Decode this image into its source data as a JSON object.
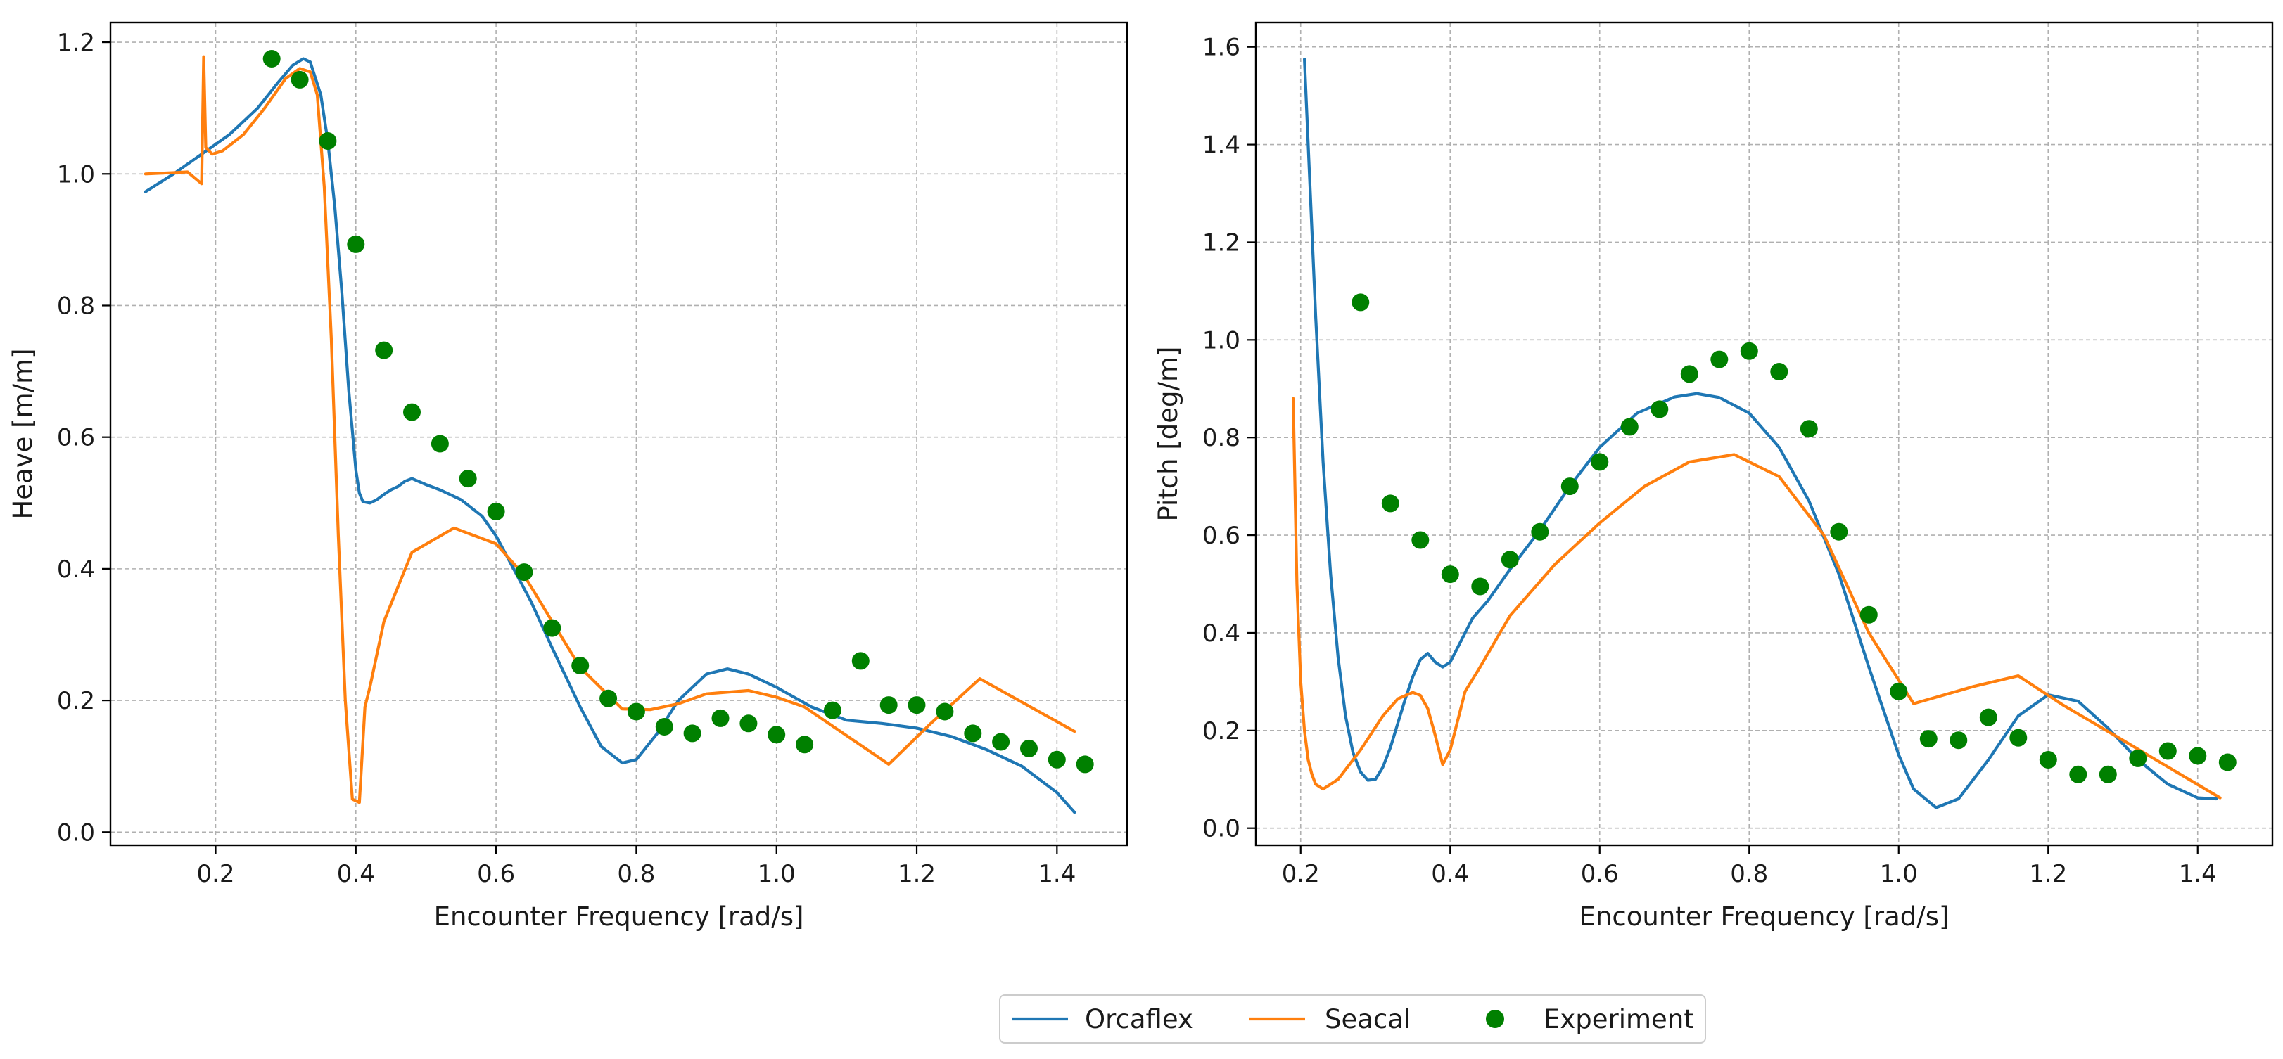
{
  "chart_data": [
    {
      "type": "line",
      "title": "",
      "xlabel": "Encounter Frequency [rad/s]",
      "ylabel": "Heave [m/m]",
      "xlim": [
        0.05,
        1.5
      ],
      "ylim": [
        -0.02,
        1.23
      ],
      "xticks": [
        0.2,
        0.4,
        0.6,
        0.8,
        1.0,
        1.2,
        1.4
      ],
      "xtick_labels": [
        "0.2",
        "0.4",
        "0.6",
        "0.8",
        "1.0",
        "1.2",
        "1.4"
      ],
      "yticks": [
        0.0,
        0.2,
        0.4,
        0.6,
        0.8,
        1.0,
        1.2
      ],
      "ytick_labels": [
        "0.0",
        "0.2",
        "0.4",
        "0.6",
        "0.8",
        "1.0",
        "1.2"
      ],
      "grid": true,
      "series": [
        {
          "name": "Orcaflex",
          "kind": "line",
          "color": "#1f77b4",
          "x": [
            0.1,
            0.14,
            0.18,
            0.22,
            0.26,
            0.29,
            0.31,
            0.325,
            0.335,
            0.35,
            0.36,
            0.37,
            0.38,
            0.39,
            0.4,
            0.405,
            0.41,
            0.42,
            0.43,
            0.44,
            0.45,
            0.46,
            0.47,
            0.48,
            0.5,
            0.52,
            0.55,
            0.58,
            0.6,
            0.62,
            0.65,
            0.68,
            0.72,
            0.75,
            0.78,
            0.8,
            0.83,
            0.86,
            0.9,
            0.93,
            0.96,
            1.0,
            1.05,
            1.1,
            1.15,
            1.2,
            1.25,
            1.3,
            1.35,
            1.4,
            1.425
          ],
          "y": [
            0.973,
            1.0,
            1.03,
            1.06,
            1.1,
            1.14,
            1.165,
            1.175,
            1.17,
            1.12,
            1.05,
            0.95,
            0.82,
            0.67,
            0.55,
            0.515,
            0.502,
            0.5,
            0.505,
            0.513,
            0.52,
            0.525,
            0.533,
            0.537,
            0.528,
            0.52,
            0.505,
            0.48,
            0.45,
            0.41,
            0.35,
            0.28,
            0.19,
            0.13,
            0.105,
            0.11,
            0.15,
            0.2,
            0.24,
            0.248,
            0.24,
            0.22,
            0.19,
            0.17,
            0.165,
            0.158,
            0.145,
            0.125,
            0.1,
            0.06,
            0.03
          ]
        },
        {
          "name": "Seacal",
          "kind": "line",
          "color": "#ff7f0e",
          "x": [
            0.1,
            0.16,
            0.18,
            0.183,
            0.186,
            0.195,
            0.21,
            0.24,
            0.27,
            0.3,
            0.32,
            0.335,
            0.345,
            0.355,
            0.365,
            0.375,
            0.385,
            0.395,
            0.405,
            0.413,
            0.42,
            0.44,
            0.48,
            0.54,
            0.6,
            0.64,
            0.68,
            0.72,
            0.78,
            0.82,
            0.86,
            0.9,
            0.96,
            1.0,
            1.04,
            1.16,
            1.22,
            1.29,
            1.425
          ],
          "y": [
            1.0,
            1.003,
            0.985,
            1.178,
            1.04,
            1.03,
            1.035,
            1.06,
            1.1,
            1.145,
            1.16,
            1.155,
            1.12,
            0.98,
            0.75,
            0.45,
            0.2,
            0.05,
            0.045,
            0.19,
            0.22,
            0.32,
            0.425,
            0.462,
            0.438,
            0.39,
            0.32,
            0.25,
            0.187,
            0.186,
            0.195,
            0.21,
            0.215,
            0.205,
            0.19,
            0.103,
            0.165,
            0.233,
            0.153
          ]
        },
        {
          "name": "Experiment",
          "kind": "scatter",
          "color": "#008000",
          "x": [
            0.28,
            0.32,
            0.36,
            0.4,
            0.44,
            0.48,
            0.52,
            0.56,
            0.6,
            0.64,
            0.68,
            0.72,
            0.76,
            0.8,
            0.84,
            0.88,
            0.92,
            0.96,
            1.0,
            1.04,
            1.08,
            1.12,
            1.16,
            1.2,
            1.24,
            1.28,
            1.32,
            1.36,
            1.4,
            1.44
          ],
          "y": [
            1.175,
            1.143,
            1.05,
            0.893,
            0.732,
            0.638,
            0.59,
            0.537,
            0.487,
            0.395,
            0.31,
            0.253,
            0.203,
            0.183,
            0.16,
            0.15,
            0.173,
            0.165,
            0.148,
            0.133,
            0.185,
            0.26,
            0.193,
            0.193,
            0.183,
            0.15,
            0.137,
            0.127,
            0.11,
            0.103
          ]
        }
      ]
    },
    {
      "type": "line",
      "title": "",
      "xlabel": "Encounter Frequency [rad/s]",
      "ylabel": "Pitch [deg/m]",
      "xlim": [
        0.14,
        1.5
      ],
      "ylim": [
        -0.035,
        1.65
      ],
      "xticks": [
        0.2,
        0.4,
        0.6,
        0.8,
        1.0,
        1.2,
        1.4
      ],
      "xtick_labels": [
        "0.2",
        "0.4",
        "0.6",
        "0.8",
        "1.0",
        "1.2",
        "1.4"
      ],
      "yticks": [
        0.0,
        0.2,
        0.4,
        0.6,
        0.8,
        1.0,
        1.2,
        1.4,
        1.6
      ],
      "ytick_labels": [
        "0.0",
        "0.2",
        "0.4",
        "0.6",
        "0.8",
        "1.0",
        "1.2",
        "1.4",
        "1.6"
      ],
      "grid": true,
      "series": [
        {
          "name": "Orcaflex",
          "kind": "line",
          "color": "#1f77b4",
          "x": [
            0.205,
            0.21,
            0.22,
            0.23,
            0.24,
            0.25,
            0.26,
            0.27,
            0.28,
            0.29,
            0.3,
            0.31,
            0.32,
            0.33,
            0.34,
            0.35,
            0.36,
            0.37,
            0.38,
            0.39,
            0.4,
            0.41,
            0.42,
            0.43,
            0.45,
            0.48,
            0.52,
            0.56,
            0.6,
            0.65,
            0.7,
            0.73,
            0.76,
            0.8,
            0.84,
            0.88,
            0.92,
            0.96,
            1.0,
            1.02,
            1.05,
            1.08,
            1.12,
            1.16,
            1.2,
            1.24,
            1.28,
            1.32,
            1.36,
            1.4,
            1.425
          ],
          "y": [
            1.575,
            1.4,
            1.05,
            0.75,
            0.52,
            0.35,
            0.23,
            0.155,
            0.115,
            0.098,
            0.1,
            0.125,
            0.165,
            0.215,
            0.265,
            0.31,
            0.345,
            0.358,
            0.34,
            0.33,
            0.34,
            0.37,
            0.4,
            0.43,
            0.465,
            0.53,
            0.61,
            0.7,
            0.78,
            0.85,
            0.883,
            0.89,
            0.882,
            0.85,
            0.78,
            0.67,
            0.52,
            0.33,
            0.15,
            0.08,
            0.042,
            0.06,
            0.14,
            0.23,
            0.273,
            0.26,
            0.205,
            0.14,
            0.09,
            0.062,
            0.06
          ]
        },
        {
          "name": "Seacal",
          "kind": "line",
          "color": "#ff7f0e",
          "x": [
            0.19,
            0.195,
            0.2,
            0.205,
            0.21,
            0.215,
            0.22,
            0.23,
            0.25,
            0.28,
            0.31,
            0.33,
            0.35,
            0.36,
            0.37,
            0.38,
            0.39,
            0.4,
            0.41,
            0.42,
            0.44,
            0.48,
            0.54,
            0.6,
            0.66,
            0.72,
            0.78,
            0.84,
            0.9,
            0.96,
            1.02,
            1.1,
            1.16,
            1.22,
            1.3,
            1.43
          ],
          "y": [
            0.88,
            0.5,
            0.3,
            0.2,
            0.14,
            0.11,
            0.09,
            0.08,
            0.1,
            0.16,
            0.23,
            0.265,
            0.278,
            0.272,
            0.245,
            0.19,
            0.13,
            0.16,
            0.22,
            0.28,
            0.33,
            0.435,
            0.54,
            0.625,
            0.7,
            0.75,
            0.765,
            0.72,
            0.6,
            0.4,
            0.255,
            0.29,
            0.312,
            0.252,
            0.18,
            0.062
          ]
        },
        {
          "name": "Experiment",
          "kind": "scatter",
          "color": "#008000",
          "x": [
            0.28,
            0.32,
            0.36,
            0.4,
            0.44,
            0.48,
            0.52,
            0.56,
            0.6,
            0.64,
            0.68,
            0.72,
            0.76,
            0.8,
            0.84,
            0.88,
            0.92,
            0.96,
            1.0,
            1.04,
            1.08,
            1.12,
            1.16,
            1.2,
            1.24,
            1.28,
            1.32,
            1.36,
            1.4,
            1.44
          ],
          "y": [
            1.077,
            0.665,
            0.59,
            0.52,
            0.495,
            0.55,
            0.607,
            0.7,
            0.75,
            0.822,
            0.858,
            0.93,
            0.96,
            0.977,
            0.935,
            0.818,
            0.607,
            0.437,
            0.28,
            0.183,
            0.18,
            0.227,
            0.185,
            0.14,
            0.11,
            0.11,
            0.143,
            0.158,
            0.148,
            0.135
          ]
        }
      ]
    }
  ],
  "legend": {
    "placement": "bottom-center",
    "items": [
      {
        "label": "Orcaflex",
        "marker": "line",
        "color": "#1f77b4"
      },
      {
        "label": "Seacal",
        "marker": "line",
        "color": "#ff7f0e"
      },
      {
        "label": "Experiment",
        "marker": "dot",
        "color": "#008000"
      }
    ]
  }
}
